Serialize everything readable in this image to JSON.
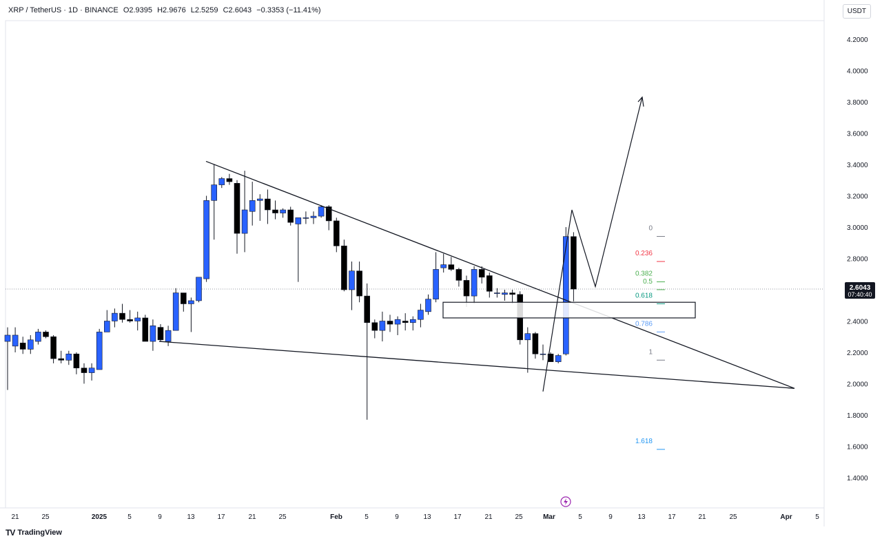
{
  "header": {
    "symbol": "XRP / TetherUS · 1D · BINANCE",
    "open": "O2.9395",
    "high": "H2.9676",
    "low": "L2.5259",
    "close": "C2.6043",
    "change": "−0.3353 (−11.41%)"
  },
  "currency": "USDT",
  "price_tag": {
    "price": "2.6043",
    "countdown": "07:40:40"
  },
  "footer": {
    "brand": "TradingView",
    "logo_glyph": "TV"
  },
  "colors": {
    "up": "#2962ff",
    "down": "#000000",
    "price_tag": "#131722"
  },
  "chart_data": {
    "type": "candlestick",
    "y_ticks": [
      "4.2000",
      "4.0000",
      "3.8000",
      "3.6000",
      "3.4000",
      "3.2000",
      "3.0000",
      "2.8000",
      "2.6000",
      "2.4000",
      "2.2000",
      "2.0000",
      "1.8000",
      "1.6000",
      "1.4000"
    ],
    "ylim": [
      1.36,
      4.32
    ],
    "x_ticks": [
      "21",
      "25",
      "2025",
      "5",
      "9",
      "13",
      "17",
      "21",
      "25",
      "Feb",
      "5",
      "9",
      "13",
      "17",
      "21",
      "25",
      "Mar",
      "5",
      "9",
      "13",
      "17",
      "21",
      "25",
      "Apr",
      "5"
    ],
    "candles": [
      {
        "o": 2.27,
        "h": 2.36,
        "l": 1.96,
        "c": 2.31
      },
      {
        "o": 2.24,
        "h": 2.36,
        "l": 2.2,
        "c": 2.31
      },
      {
        "o": 2.26,
        "h": 2.3,
        "l": 2.19,
        "c": 2.22
      },
      {
        "o": 2.22,
        "h": 2.31,
        "l": 2.19,
        "c": 2.28
      },
      {
        "o": 2.27,
        "h": 2.35,
        "l": 2.25,
        "c": 2.33
      },
      {
        "o": 2.33,
        "h": 2.34,
        "l": 2.29,
        "c": 2.3
      },
      {
        "o": 2.3,
        "h": 2.31,
        "l": 2.13,
        "c": 2.16
      },
      {
        "o": 2.16,
        "h": 2.21,
        "l": 2.13,
        "c": 2.15
      },
      {
        "o": 2.15,
        "h": 2.21,
        "l": 2.12,
        "c": 2.19
      },
      {
        "o": 2.19,
        "h": 2.2,
        "l": 2.06,
        "c": 2.1
      },
      {
        "o": 2.1,
        "h": 2.13,
        "l": 2.0,
        "c": 2.07
      },
      {
        "o": 2.07,
        "h": 2.13,
        "l": 2.02,
        "c": 2.1
      },
      {
        "o": 2.09,
        "h": 2.35,
        "l": 2.09,
        "c": 2.33
      },
      {
        "o": 2.33,
        "h": 2.47,
        "l": 2.33,
        "c": 2.4
      },
      {
        "o": 2.4,
        "h": 2.48,
        "l": 2.36,
        "c": 2.45
      },
      {
        "o": 2.45,
        "h": 2.51,
        "l": 2.39,
        "c": 2.41
      },
      {
        "o": 2.41,
        "h": 2.47,
        "l": 2.39,
        "c": 2.4
      },
      {
        "o": 2.4,
        "h": 2.46,
        "l": 2.34,
        "c": 2.42
      },
      {
        "o": 2.42,
        "h": 2.44,
        "l": 2.28,
        "c": 2.27
      },
      {
        "o": 2.27,
        "h": 2.41,
        "l": 2.21,
        "c": 2.37
      },
      {
        "o": 2.36,
        "h": 2.38,
        "l": 2.27,
        "c": 2.28
      },
      {
        "o": 2.27,
        "h": 2.37,
        "l": 2.24,
        "c": 2.34
      },
      {
        "o": 2.34,
        "h": 2.61,
        "l": 2.34,
        "c": 2.58
      },
      {
        "o": 2.58,
        "h": 2.58,
        "l": 2.46,
        "c": 2.51
      },
      {
        "o": 2.51,
        "h": 2.55,
        "l": 2.33,
        "c": 2.53
      },
      {
        "o": 2.53,
        "h": 2.68,
        "l": 2.52,
        "c": 2.68
      },
      {
        "o": 2.67,
        "h": 3.2,
        "l": 2.65,
        "c": 3.17
      },
      {
        "o": 3.17,
        "h": 3.4,
        "l": 2.92,
        "c": 3.27
      },
      {
        "o": 3.27,
        "h": 3.32,
        "l": 3.25,
        "c": 3.31
      },
      {
        "o": 3.31,
        "h": 3.34,
        "l": 3.27,
        "c": 3.29
      },
      {
        "o": 3.28,
        "h": 3.3,
        "l": 2.83,
        "c": 2.96
      },
      {
        "o": 2.96,
        "h": 3.36,
        "l": 2.84,
        "c": 3.11
      },
      {
        "o": 3.1,
        "h": 3.29,
        "l": 3.01,
        "c": 3.17
      },
      {
        "o": 3.17,
        "h": 3.21,
        "l": 3.04,
        "c": 3.18
      },
      {
        "o": 3.18,
        "h": 3.24,
        "l": 3.02,
        "c": 3.11
      },
      {
        "o": 3.11,
        "h": 3.17,
        "l": 3.05,
        "c": 3.09
      },
      {
        "o": 3.09,
        "h": 3.12,
        "l": 3.06,
        "c": 3.11
      },
      {
        "o": 3.11,
        "h": 3.13,
        "l": 3.01,
        "c": 3.03
      },
      {
        "o": 3.02,
        "h": 3.04,
        "l": 2.65,
        "c": 3.06
      },
      {
        "o": 3.06,
        "h": 3.1,
        "l": 3.02,
        "c": 3.06
      },
      {
        "o": 3.06,
        "h": 3.1,
        "l": 3.02,
        "c": 3.07
      },
      {
        "o": 3.07,
        "h": 3.14,
        "l": 3.06,
        "c": 3.13
      },
      {
        "o": 3.13,
        "h": 3.14,
        "l": 2.98,
        "c": 3.04
      },
      {
        "o": 3.04,
        "h": 3.06,
        "l": 2.84,
        "c": 2.88
      },
      {
        "o": 2.88,
        "h": 2.92,
        "l": 2.59,
        "c": 2.6
      },
      {
        "o": 2.6,
        "h": 2.78,
        "l": 2.47,
        "c": 2.72
      },
      {
        "o": 2.72,
        "h": 2.78,
        "l": 2.52,
        "c": 2.56
      },
      {
        "o": 2.56,
        "h": 2.64,
        "l": 1.77,
        "c": 2.39
      },
      {
        "o": 2.39,
        "h": 2.41,
        "l": 2.29,
        "c": 2.34
      },
      {
        "o": 2.34,
        "h": 2.46,
        "l": 2.27,
        "c": 2.4
      },
      {
        "o": 2.4,
        "h": 2.44,
        "l": 2.33,
        "c": 2.38
      },
      {
        "o": 2.38,
        "h": 2.43,
        "l": 2.31,
        "c": 2.41
      },
      {
        "o": 2.4,
        "h": 2.45,
        "l": 2.34,
        "c": 2.39
      },
      {
        "o": 2.39,
        "h": 2.43,
        "l": 2.34,
        "c": 2.41
      },
      {
        "o": 2.41,
        "h": 2.51,
        "l": 2.36,
        "c": 2.47
      },
      {
        "o": 2.46,
        "h": 2.57,
        "l": 2.44,
        "c": 2.54
      },
      {
        "o": 2.54,
        "h": 2.84,
        "l": 2.52,
        "c": 2.73
      },
      {
        "o": 2.74,
        "h": 2.83,
        "l": 2.71,
        "c": 2.76
      },
      {
        "o": 2.76,
        "h": 2.81,
        "l": 2.72,
        "c": 2.73
      },
      {
        "o": 2.73,
        "h": 2.74,
        "l": 2.62,
        "c": 2.66
      },
      {
        "o": 2.66,
        "h": 2.69,
        "l": 2.49,
        "c": 2.56
      },
      {
        "o": 2.56,
        "h": 2.75,
        "l": 2.51,
        "c": 2.73
      },
      {
        "o": 2.73,
        "h": 2.75,
        "l": 2.64,
        "c": 2.68
      },
      {
        "o": 2.69,
        "h": 2.71,
        "l": 2.55,
        "c": 2.59
      },
      {
        "o": 2.58,
        "h": 2.61,
        "l": 2.55,
        "c": 2.58
      },
      {
        "o": 2.57,
        "h": 2.6,
        "l": 2.53,
        "c": 2.58
      },
      {
        "o": 2.58,
        "h": 2.6,
        "l": 2.51,
        "c": 2.57
      },
      {
        "o": 2.57,
        "h": 2.59,
        "l": 2.25,
        "c": 2.28
      },
      {
        "o": 2.28,
        "h": 2.36,
        "l": 2.07,
        "c": 2.32
      },
      {
        "o": 2.32,
        "h": 2.33,
        "l": 2.16,
        "c": 2.19
      },
      {
        "o": 2.19,
        "h": 2.25,
        "l": 2.15,
        "c": 2.19
      },
      {
        "o": 2.19,
        "h": 2.2,
        "l": 2.14,
        "c": 2.14
      },
      {
        "o": 2.14,
        "h": 2.19,
        "l": 2.13,
        "c": 2.18
      },
      {
        "o": 2.19,
        "h": 3.0,
        "l": 2.18,
        "c": 2.94
      },
      {
        "o": 2.9395,
        "h": 2.9676,
        "l": 2.5259,
        "c": 2.6043
      }
    ],
    "fib_levels": [
      {
        "label": "0",
        "value": 2.98,
        "color": "#787b86"
      },
      {
        "label": "0.236",
        "value": 2.82,
        "color": "#f23645"
      },
      {
        "label": "0.382",
        "value": 2.69,
        "color": "#4caf50"
      },
      {
        "label": "0.5",
        "value": 2.64,
        "color": "#4caf50"
      },
      {
        "label": "0.618",
        "value": 2.55,
        "color": "#089981"
      },
      {
        "label": "0.786",
        "value": 2.37,
        "color": "#5b9cf6"
      },
      {
        "label": "1",
        "value": 2.19,
        "color": "#787b86"
      },
      {
        "label": "1.618",
        "value": 1.62,
        "color": "#2196f3"
      }
    ]
  }
}
